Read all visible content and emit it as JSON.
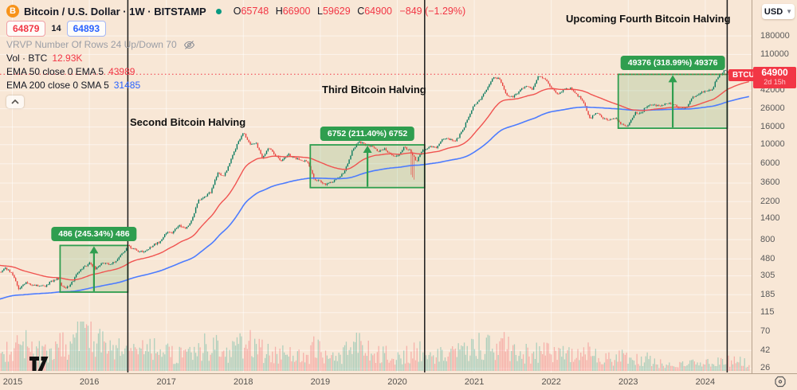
{
  "header": {
    "title": "Bitcoin / U.S. Dollar · 1W · BITSTAMP",
    "ohlc": {
      "o_label": "O",
      "o_value": "65748",
      "h_label": "H",
      "h_value": "66900",
      "l_label": "L",
      "l_value": "59629",
      "c_label": "C",
      "c_value": "64900",
      "change": "−849 (−1.29%)"
    },
    "bid": "64879",
    "spread": "14",
    "ask": "64893"
  },
  "legend": {
    "vrvp": "VRVP Number Of Rows 24 Up/Down 70",
    "vol_label": "Vol · BTC",
    "vol_value": "12.93K",
    "ema50_label": "EMA 50 close 0 EMA 5",
    "ema50_value": "43989",
    "ema200_label": "EMA 200 close 0 SMA 5",
    "ema200_value": "31485"
  },
  "axis": {
    "currency": "USD",
    "price_ticks": [
      180000,
      110000,
      42000,
      26000,
      16000,
      10000,
      6000,
      3600,
      2200,
      1400,
      800,
      480,
      305,
      185,
      115,
      70,
      42,
      26
    ],
    "years": [
      "2015",
      "2016",
      "2017",
      "2018",
      "2019",
      "2020",
      "2021",
      "2022",
      "2023",
      "2024"
    ],
    "price_label": {
      "symbol": "BTCUSD",
      "price": "64900",
      "countdown": "2d 15h"
    }
  },
  "chart_data": {
    "type": "candlestick",
    "symbol": "BTCUSD",
    "exchange": "BITSTAMP",
    "interval": "1W",
    "scale": "log",
    "current_price": 64900,
    "last_candle": {
      "open": 65748,
      "high": 66900,
      "low": 59629,
      "close": 64900
    },
    "halvings": [
      {
        "name": "Second Bitcoin Halving",
        "t": 2016.5
      },
      {
        "name": "Third Bitcoin Halving",
        "t": 2020.355
      },
      {
        "name": "Upcoming Fourth Bitcoin Halving",
        "t": 2024.285
      }
    ],
    "ranges": [
      {
        "label": "486 (245.34%) 486",
        "t1": 2015.62,
        "t2": 2016.5,
        "p_low": 198,
        "p_high": 684
      },
      {
        "label": "6752 (211.40%) 6752",
        "t1": 2018.87,
        "t2": 2020.355,
        "p_low": 3194,
        "p_high": 9946
      },
      {
        "label": "49376 (318.99%) 49376",
        "t1": 2022.87,
        "t2": 2024.285,
        "p_low": 15479,
        "p_high": 64855
      }
    ],
    "monthly_close_anchors": {
      "start": "2014-10",
      "values": [
        340,
        375,
        320,
        217,
        254,
        244,
        236,
        230,
        263,
        284,
        220,
        236,
        314,
        377,
        430,
        368,
        437,
        416,
        448,
        531,
        673,
        624,
        575,
        610,
        700,
        745,
        963,
        970,
        1180,
        1080,
        1350,
        2300,
        2480,
        2875,
        4700,
        4360,
        6450,
        9900,
        14100,
        10200,
        10300,
        6930,
        9240,
        7490,
        6400,
        7750,
        7020,
        6600,
        6340,
        4020,
        3740,
        3460,
        3820,
        4100,
        5320,
        8560,
        10800,
        10080,
        9600,
        8290,
        9150,
        7560,
        7190,
        9350,
        8530,
        6440,
        8620,
        9450,
        9140,
        11350,
        11650,
        10780,
        13800,
        19700,
        29000,
        33100,
        45100,
        58800,
        57750,
        37300,
        35000,
        41500,
        47100,
        43800,
        61300,
        57000,
        46200,
        38500,
        43200,
        45500,
        37700,
        31800,
        19900,
        23300,
        20050,
        19400,
        20500,
        17100,
        16550,
        23100,
        23150,
        28500,
        29250,
        27200,
        30470,
        29230,
        25930,
        26960,
        34650,
        37700,
        42280,
        42580,
        61200,
        71300,
        64900,
        66500,
        65500,
        64900
      ]
    },
    "monthly_volume_heights": [
      28,
      30,
      32,
      35,
      40,
      30,
      28,
      25,
      30,
      35,
      38,
      30,
      45,
      60,
      45,
      40,
      35,
      30,
      28,
      35,
      45,
      40,
      30,
      28,
      30,
      32,
      38,
      25,
      22,
      20,
      22,
      30,
      32,
      28,
      35,
      30,
      28,
      32,
      38,
      40,
      30,
      28,
      25,
      22,
      25,
      22,
      20,
      18,
      18,
      30,
      28,
      18,
      18,
      20,
      25,
      35,
      38,
      30,
      26,
      22,
      22,
      20,
      18,
      20,
      22,
      35,
      28,
      25,
      22,
      25,
      28,
      24,
      26,
      32,
      35,
      35,
      32,
      30,
      28,
      38,
      30,
      24,
      26,
      24,
      28,
      26,
      22,
      20,
      22,
      20,
      18,
      22,
      26,
      18,
      16,
      16,
      14,
      20,
      14,
      16,
      12,
      16,
      12,
      10,
      10,
      9,
      9,
      8,
      10,
      11,
      11,
      12,
      14,
      18,
      13,
      12,
      12,
      12
    ],
    "indicators": {
      "ema50": 43989,
      "ema200": 31485,
      "volume": "12.93K"
    }
  },
  "colors": {
    "background": "#f8e7d6",
    "up": "#0a7a5f",
    "down": "#e8433f",
    "ema50": "#f05350",
    "ema200": "#4d7cfe",
    "range_green": "#2f9e4f",
    "label_red": "#f23645",
    "halving_line": "#1c1c1c"
  }
}
